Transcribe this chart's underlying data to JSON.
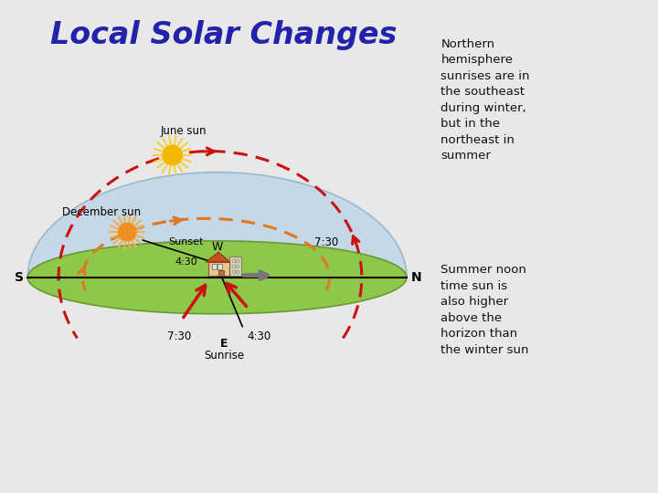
{
  "title": "Local Solar Changes",
  "title_color": "#2222aa",
  "title_fontsize": 24,
  "bg_color": "#e8e8e8",
  "sky_color": "#c5d8e8",
  "sky_edge_color": "#9ab8cc",
  "ground_color": "#8ec84a",
  "ground_edge_color": "#6a9830",
  "arrow_red": "#cc1111",
  "arrow_orange": "#e07820",
  "sun_june_body": "#f5b800",
  "sun_june_ray": "#f8d040",
  "sun_dec_body": "#f09020",
  "sun_dec_ray": "#f0b050",
  "text_dark": "#111111",
  "text_right": "#111111",
  "right_text1": "Northern\nhemisphere\nsunrises are in\nthe southeast\nduring winter,\nbut in the\nnortheast in\nsummer",
  "right_text2": "Summer noon\ntime sun is\nalso higher\nabove the\nhorizon than\nthe winter sun",
  "label_june": "June sun",
  "label_dec": "December sun",
  "label_sunset": "Sunset",
  "label_w": "W",
  "label_e": "E",
  "label_s": "S",
  "label_n": "N",
  "label_sunrise": "Sunrise",
  "label_430_sunset": "4:30",
  "label_730_sunset": "7:30",
  "label_730_sunrise": "7:30",
  "label_430_sunrise": "4:30"
}
